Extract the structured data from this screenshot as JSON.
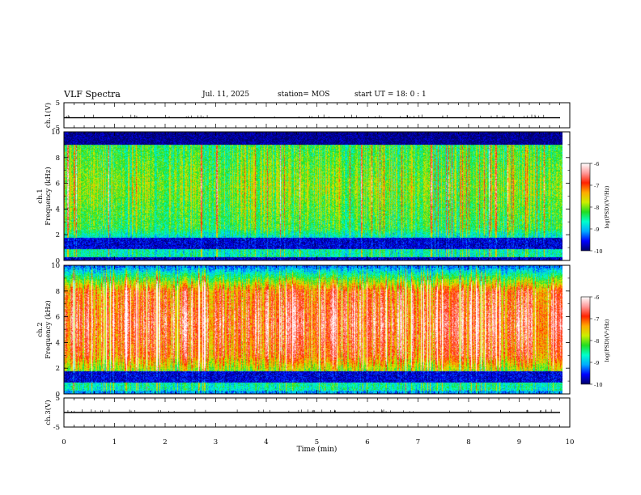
{
  "header": {
    "title": "VLF Spectra",
    "date": "Jul. 11, 2025",
    "station": "station= MOS",
    "start": "start UT = 18: 0 : 1"
  },
  "chart_data": [
    {
      "type": "line",
      "panel": "ch1-waveform",
      "ylabel": "ch.1(V)",
      "ylim": [
        -5,
        5
      ],
      "yticks": [
        "5",
        "-5"
      ],
      "xlim": [
        0,
        10
      ],
      "series": [
        {
          "values_note": "flat trace",
          "level": -1
        }
      ]
    },
    {
      "type": "heatmap",
      "panel": "ch1-spectrogram",
      "ylabel": "ch.1\nFrequency (kHz)",
      "ylabel_lines": [
        "ch.1",
        "Frequency (kHz)"
      ],
      "ylim": [
        0,
        10
      ],
      "yticks": [
        "0",
        "2",
        "4",
        "6",
        "8",
        "10"
      ],
      "xlim": [
        0,
        9.85
      ],
      "colorbar": {
        "label": "log(PSD)(V²/Hz)",
        "range": [
          -10,
          -6
        ],
        "ticks": [
          "-6",
          "-7",
          "-8",
          "-9",
          "-10"
        ]
      },
      "dominant_band_khz": [
        2.5,
        9
      ],
      "dominant_level": -8.3
    },
    {
      "type": "heatmap",
      "panel": "ch2-spectrogram",
      "ylabel": "ch.2\nFrequency (kHz)",
      "ylabel_lines": [
        "ch.2",
        "Frequency (kHz)"
      ],
      "ylim": [
        0,
        10
      ],
      "yticks": [
        "0",
        "2",
        "4",
        "6",
        "8",
        "10"
      ],
      "xlim": [
        0,
        9.85
      ],
      "colorbar": {
        "label": "log(PSD)(V²/Hz)",
        "range": [
          -10,
          -6
        ],
        "ticks": [
          "-6",
          "-7",
          "-8",
          "-9",
          "-10"
        ]
      },
      "dominant_band_khz": [
        3,
        8
      ],
      "dominant_level": -7.1
    },
    {
      "type": "line",
      "panel": "ch3-waveform",
      "ylabel": "ch.3(V)",
      "ylim": [
        -5,
        5
      ],
      "yticks": [
        "5",
        "-5"
      ],
      "xlim": [
        0,
        10
      ],
      "series": [
        {
          "values_note": "flat trace",
          "level": 0
        }
      ]
    }
  ],
  "xaxis": {
    "label": "Time (min)",
    "ticks": [
      "0",
      "1",
      "2",
      "3",
      "4",
      "5",
      "6",
      "7",
      "8",
      "9",
      "10"
    ]
  },
  "colors": {
    "cmap": [
      "#000066",
      "#0000ff",
      "#00aaff",
      "#00ffcc",
      "#22dd22",
      "#ccee00",
      "#ffaa00",
      "#ff2200",
      "#ff9999",
      "#ffffff"
    ]
  }
}
